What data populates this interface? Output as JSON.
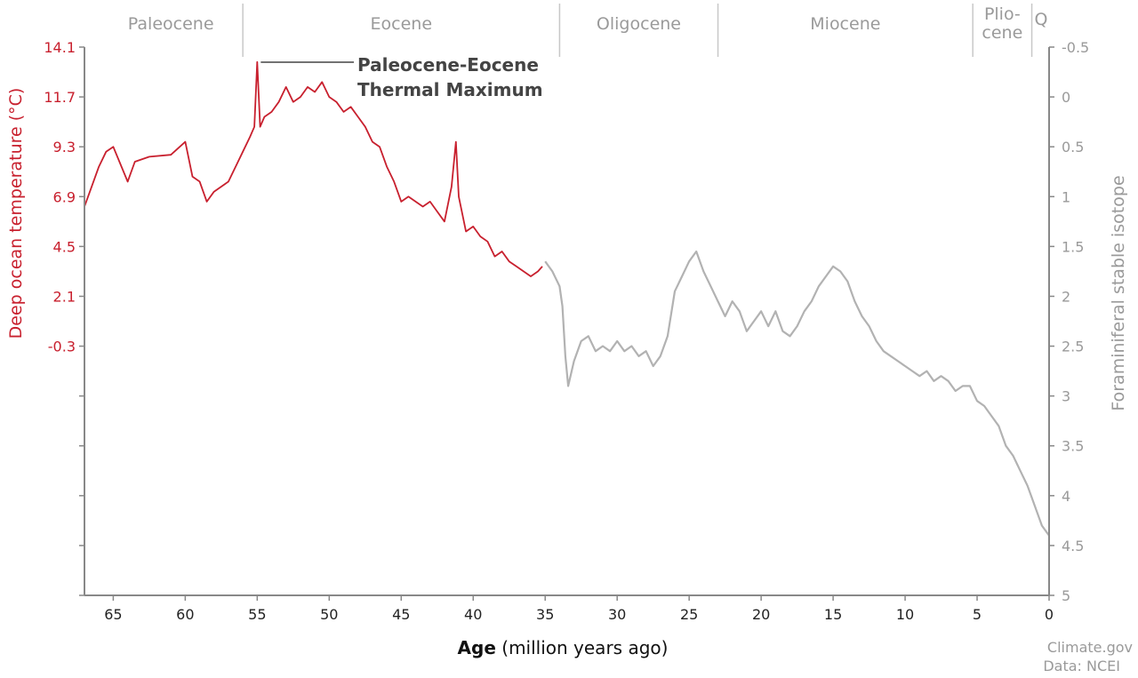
{
  "chart_data": {
    "type": "line",
    "xlabel_bold": "Age",
    "xlabel_rest": " (million years ago)",
    "ylabel_left": "Deep ocean temperature (°C)",
    "ylabel_right": "Foraminiferal stable isotope",
    "xlim": [
      67,
      0
    ],
    "ylim_right": [
      5,
      -0.5
    ],
    "x_ticks": [
      "65",
      "60",
      "55",
      "50",
      "45",
      "40",
      "35",
      "30",
      "25",
      "20",
      "15",
      "10",
      "5",
      "0"
    ],
    "y_left_ticks": [
      "14.1",
      "11.7",
      "9.3",
      "6.9",
      "4.5",
      "2.1",
      "-0.3"
    ],
    "y_right_ticks": [
      "-0.5",
      "0",
      "0.5",
      "1",
      "1.5",
      "2",
      "2.5",
      "3",
      "3.5",
      "4",
      "4.5",
      "5"
    ],
    "epochs": [
      {
        "name": "Paleocene",
        "start": 66,
        "end": 56
      },
      {
        "name": "Eocene",
        "start": 56,
        "end": 34
      },
      {
        "name": "Oligocene",
        "start": 34,
        "end": 23
      },
      {
        "name": "Miocene",
        "start": 23,
        "end": 5.3
      },
      {
        "name_line1": "Plio-",
        "name_line2": "cene",
        "start": 5.3,
        "end": 1.2
      },
      {
        "name": "Q",
        "start": 1.2,
        "end": 0
      }
    ],
    "annotation": {
      "line1": "Paleocene-Eocene",
      "line2": "Thermal Maximum",
      "x": 55
    },
    "series": [
      {
        "color": "#c8202e",
        "points": [
          [
            67,
            1.1
          ],
          [
            66.5,
            0.9
          ],
          [
            66,
            0.7
          ],
          [
            65.5,
            0.55
          ],
          [
            65,
            0.5
          ],
          [
            64,
            0.85
          ],
          [
            63.5,
            0.65
          ],
          [
            62.5,
            0.6
          ],
          [
            61,
            0.58
          ],
          [
            60,
            0.45
          ],
          [
            59.5,
            0.8
          ],
          [
            59,
            0.85
          ],
          [
            58.5,
            1.05
          ],
          [
            58,
            0.95
          ],
          [
            57,
            0.85
          ],
          [
            56.5,
            0.7
          ],
          [
            56,
            0.55
          ],
          [
            55.5,
            0.4
          ],
          [
            55.2,
            0.3
          ],
          [
            55,
            -0.35
          ],
          [
            54.8,
            0.3
          ],
          [
            54.5,
            0.2
          ],
          [
            54,
            0.15
          ],
          [
            53.5,
            0.05
          ],
          [
            53,
            -0.1
          ],
          [
            52.5,
            0.05
          ],
          [
            52,
            0.0
          ],
          [
            51.5,
            -0.1
          ],
          [
            51,
            -0.05
          ],
          [
            50.5,
            -0.15
          ],
          [
            50,
            0.0
          ],
          [
            49.5,
            0.05
          ],
          [
            49,
            0.15
          ],
          [
            48.5,
            0.1
          ],
          [
            48,
            0.2
          ],
          [
            47.5,
            0.3
          ],
          [
            47,
            0.45
          ],
          [
            46.5,
            0.5
          ],
          [
            46,
            0.7
          ],
          [
            45.5,
            0.85
          ],
          [
            45,
            1.05
          ],
          [
            44.5,
            1.0
          ],
          [
            44,
            1.05
          ],
          [
            43.5,
            1.1
          ],
          [
            43,
            1.05
          ],
          [
            42.5,
            1.15
          ],
          [
            42,
            1.25
          ],
          [
            41.5,
            0.9
          ],
          [
            41.2,
            0.45
          ],
          [
            41,
            1.0
          ],
          [
            40.5,
            1.35
          ],
          [
            40,
            1.3
          ],
          [
            39.5,
            1.4
          ],
          [
            39,
            1.45
          ],
          [
            38.5,
            1.6
          ],
          [
            38,
            1.55
          ],
          [
            37.5,
            1.65
          ],
          [
            37,
            1.7
          ],
          [
            36.5,
            1.75
          ],
          [
            36,
            1.8
          ],
          [
            35.5,
            1.75
          ],
          [
            35.2,
            1.7
          ]
        ]
      },
      {
        "color": "#b2b2b2",
        "points": [
          [
            35,
            1.65
          ],
          [
            34.5,
            1.75
          ],
          [
            34,
            1.9
          ],
          [
            33.8,
            2.1
          ],
          [
            33.6,
            2.6
          ],
          [
            33.4,
            2.9
          ],
          [
            33,
            2.65
          ],
          [
            32.5,
            2.45
          ],
          [
            32,
            2.4
          ],
          [
            31.5,
            2.55
          ],
          [
            31,
            2.5
          ],
          [
            30.5,
            2.55
          ],
          [
            30,
            2.45
          ],
          [
            29.5,
            2.55
          ],
          [
            29,
            2.5
          ],
          [
            28.5,
            2.6
          ],
          [
            28,
            2.55
          ],
          [
            27.5,
            2.7
          ],
          [
            27,
            2.6
          ],
          [
            26.5,
            2.4
          ],
          [
            26,
            1.95
          ],
          [
            25.5,
            1.8
          ],
          [
            25,
            1.65
          ],
          [
            24.5,
            1.55
          ],
          [
            24,
            1.75
          ],
          [
            23.5,
            1.9
          ],
          [
            23,
            2.05
          ],
          [
            22.5,
            2.2
          ],
          [
            22,
            2.05
          ],
          [
            21.5,
            2.15
          ],
          [
            21,
            2.35
          ],
          [
            20.5,
            2.25
          ],
          [
            20,
            2.15
          ],
          [
            19.5,
            2.3
          ],
          [
            19,
            2.15
          ],
          [
            18.5,
            2.35
          ],
          [
            18,
            2.4
          ],
          [
            17.5,
            2.3
          ],
          [
            17,
            2.15
          ],
          [
            16.5,
            2.05
          ],
          [
            16,
            1.9
          ],
          [
            15.5,
            1.8
          ],
          [
            15,
            1.7
          ],
          [
            14.5,
            1.75
          ],
          [
            14,
            1.85
          ],
          [
            13.5,
            2.05
          ],
          [
            13,
            2.2
          ],
          [
            12.5,
            2.3
          ],
          [
            12,
            2.45
          ],
          [
            11.5,
            2.55
          ],
          [
            11,
            2.6
          ],
          [
            10.5,
            2.65
          ],
          [
            10,
            2.7
          ],
          [
            9.5,
            2.75
          ],
          [
            9,
            2.8
          ],
          [
            8.5,
            2.75
          ],
          [
            8,
            2.85
          ],
          [
            7.5,
            2.8
          ],
          [
            7,
            2.85
          ],
          [
            6.5,
            2.95
          ],
          [
            6,
            2.9
          ],
          [
            5.5,
            2.9
          ],
          [
            5,
            3.05
          ],
          [
            4.5,
            3.1
          ],
          [
            4,
            3.2
          ],
          [
            3.5,
            3.3
          ],
          [
            3,
            3.5
          ],
          [
            2.5,
            3.6
          ],
          [
            2,
            3.75
          ],
          [
            1.5,
            3.9
          ],
          [
            1,
            4.1
          ],
          [
            0.5,
            4.3
          ],
          [
            0,
            4.4
          ]
        ]
      }
    ]
  },
  "credit": {
    "line1": "Climate.gov",
    "line2": "Data: NCEI"
  }
}
